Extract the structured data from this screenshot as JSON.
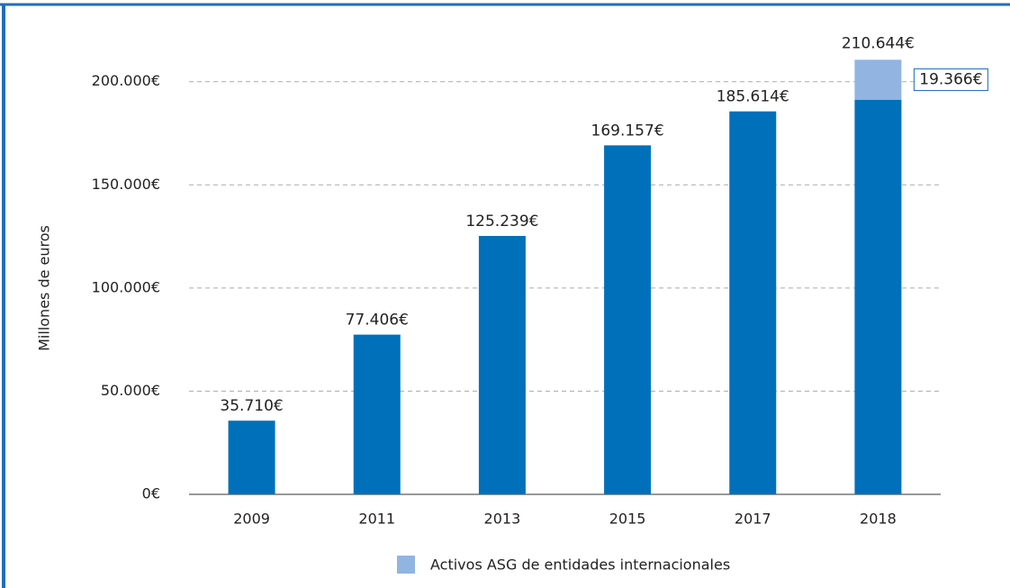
{
  "chart_data": {
    "type": "stacked-bar",
    "y_label": "Millones de euros",
    "categories": [
      "2009",
      "2011",
      "2013",
      "2015",
      "2017",
      "2018"
    ],
    "series": [
      {
        "color": "#0070bb",
        "values": [
          35710,
          77406,
          125239,
          169157,
          185614,
          191278
        ],
        "value_labels": [
          "35.710€",
          "77.406€",
          "125.239€",
          "169.157€",
          "185.614€",
          null
        ]
      },
      {
        "name": "Activos ASG de entidades internacionales",
        "color": "#92b4e0",
        "values": [
          null,
          null,
          null,
          null,
          null,
          19366
        ],
        "value_labels": [
          null,
          null,
          null,
          null,
          null,
          "19.366€"
        ]
      }
    ],
    "total": 210644,
    "total_label": "210.644€",
    "ylim": [
      0,
      230000
    ],
    "yticks": [
      {
        "value": 0,
        "label": "0€"
      },
      {
        "value": 50000,
        "label": "50.000€"
      },
      {
        "value": 100000,
        "label": "100.000€"
      },
      {
        "value": 150000,
        "label": "150.000€"
      },
      {
        "value": 200000,
        "label": "200.000€"
      }
    ],
    "grid": true
  }
}
